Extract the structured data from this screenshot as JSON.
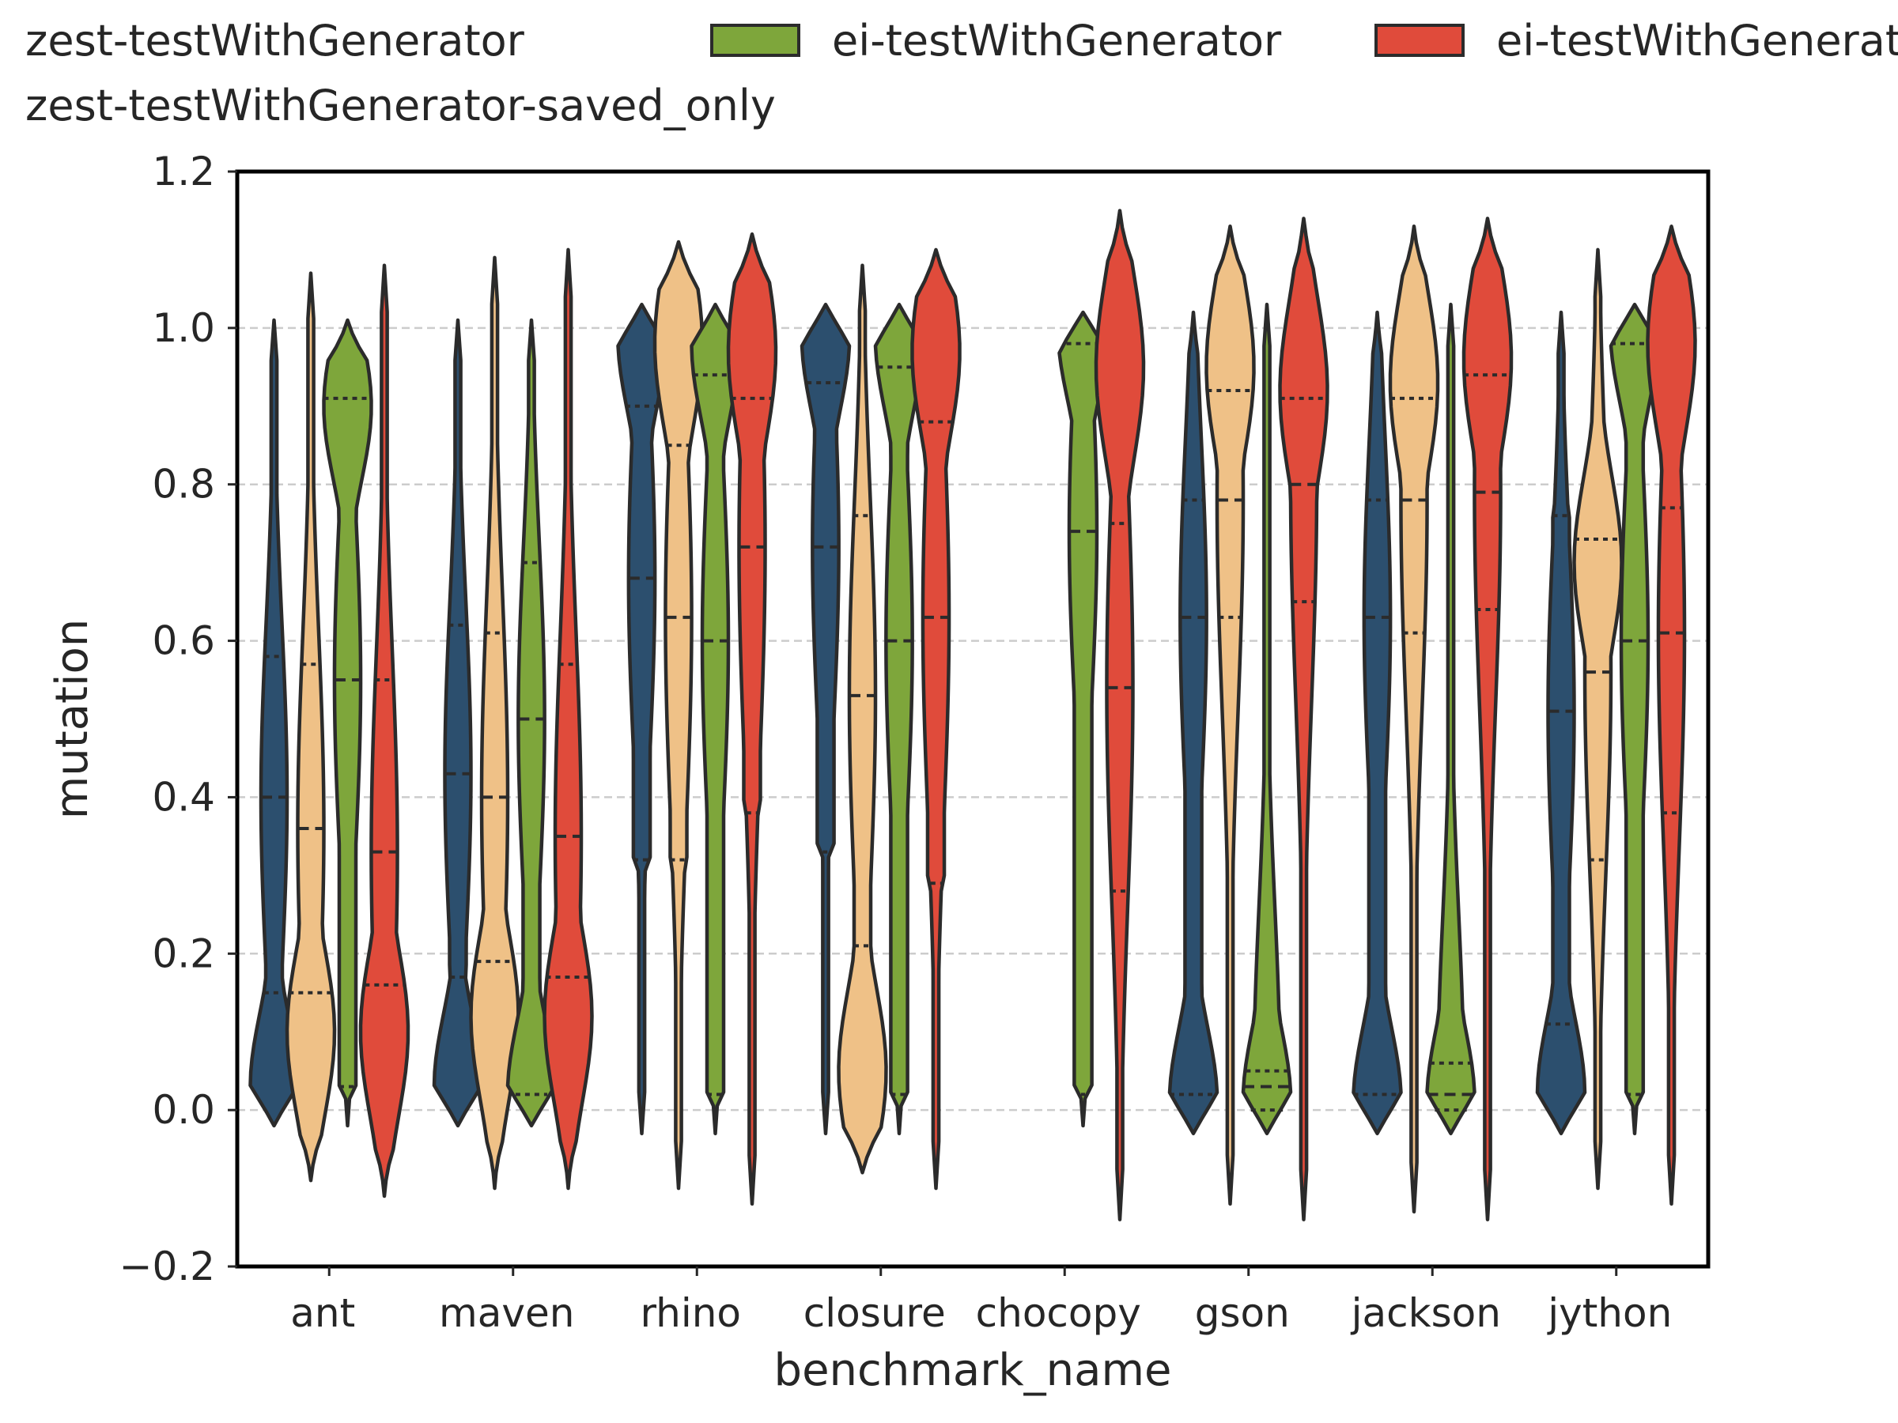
{
  "chart_data": {
    "type": "violin",
    "xlabel": "benchmark_name",
    "ylabel": "mutation",
    "ylim": [
      -0.2,
      1.2
    ],
    "yticks": [
      -0.2,
      0.0,
      0.2,
      0.4,
      0.6,
      0.8,
      1.0,
      1.2
    ],
    "ytick_labels": [
      "−0.2",
      "0.0",
      "0.2",
      "0.4",
      "0.6",
      "0.8",
      "1.0",
      "1.2"
    ],
    "grid": "horizontal dashed",
    "legend_placement": "top, above plot",
    "categories": [
      "ant",
      "maven",
      "rhino",
      "closure",
      "chocopy",
      "gson",
      "jackson",
      "jython"
    ],
    "series": [
      {
        "name": "zest-testWithGenerator",
        "legend_label": "zest-testWithGenerator",
        "color": "#2c4f6e",
        "violins": [
          {
            "category": "ant",
            "min": -0.02,
            "max": 1.01,
            "q1": 0.15,
            "median": 0.4,
            "q3": 0.58,
            "mode": 0.03
          },
          {
            "category": "maven",
            "min": -0.02,
            "max": 1.01,
            "q1": 0.17,
            "median": 0.43,
            "q3": 0.62,
            "mode": 0.03
          },
          {
            "category": "rhino",
            "min": -0.03,
            "max": 1.03,
            "q1": 0.32,
            "median": 0.68,
            "q3": 0.9,
            "mode": 0.99
          },
          {
            "category": "closure",
            "min": -0.03,
            "max": 1.03,
            "q1": 0.33,
            "median": 0.72,
            "q3": 0.93,
            "mode": 0.99
          },
          {
            "category": "chocopy",
            "min": null,
            "max": null,
            "q1": null,
            "median": null,
            "q3": null,
            "mode": null
          },
          {
            "category": "gson",
            "min": -0.03,
            "max": 1.02,
            "q1": 0.02,
            "median": 0.63,
            "q3": 0.78,
            "mode": 0.01
          },
          {
            "category": "jackson",
            "min": -0.03,
            "max": 1.02,
            "q1": 0.02,
            "median": 0.63,
            "q3": 0.78,
            "mode": 0.01
          },
          {
            "category": "jython",
            "min": -0.03,
            "max": 1.02,
            "q1": 0.11,
            "median": 0.51,
            "q3": 0.76,
            "mode": 0.02
          }
        ]
      },
      {
        "name": "zest-testWithGenerator-saved_only",
        "legend_label": "zest-testWithGenerator-saved_only",
        "color": "#efc187",
        "violins": [
          {
            "category": "ant",
            "min": -0.09,
            "max": 1.07,
            "q1": 0.15,
            "median": 0.36,
            "q3": 0.57,
            "mode": 0.1
          },
          {
            "category": "maven",
            "min": -0.1,
            "max": 1.09,
            "q1": 0.19,
            "median": 0.4,
            "q3": 0.61,
            "mode": 0.12
          },
          {
            "category": "rhino",
            "min": -0.1,
            "max": 1.11,
            "q1": 0.32,
            "median": 0.63,
            "q3": 0.85,
            "mode": 0.98
          },
          {
            "category": "closure",
            "min": -0.08,
            "max": 1.08,
            "q1": 0.21,
            "median": 0.53,
            "q3": 0.76,
            "mode": 0.05
          },
          {
            "category": "chocopy",
            "min": null,
            "max": null,
            "q1": null,
            "median": null,
            "q3": null,
            "mode": null
          },
          {
            "category": "gson",
            "min": -0.12,
            "max": 1.13,
            "q1": 0.63,
            "median": 0.78,
            "q3": 0.92,
            "mode": 0.95
          },
          {
            "category": "jackson",
            "min": -0.13,
            "max": 1.13,
            "q1": 0.61,
            "median": 0.78,
            "q3": 0.91,
            "mode": 0.93
          },
          {
            "category": "jython",
            "min": -0.1,
            "max": 1.1,
            "q1": 0.32,
            "median": 0.56,
            "q3": 0.73,
            "mode": 0.7
          }
        ]
      },
      {
        "name": "ei-testWithGenerator",
        "legend_label": "ei-testWithGenerator",
        "color": "#7ea63b",
        "violins": [
          {
            "category": "ant",
            "min": -0.02,
            "max": 1.01,
            "q1": 0.03,
            "median": 0.55,
            "q3": 0.91,
            "mode": 0.9
          },
          {
            "category": "maven",
            "min": -0.02,
            "max": 1.01,
            "q1": 0.02,
            "median": 0.5,
            "q3": 0.7,
            "mode": 0.02
          },
          {
            "category": "rhino",
            "min": -0.03,
            "max": 1.03,
            "q1": 0.02,
            "median": 0.6,
            "q3": 0.94,
            "mode": 0.98
          },
          {
            "category": "closure",
            "min": -0.03,
            "max": 1.03,
            "q1": 0.02,
            "median": 0.6,
            "q3": 0.95,
            "mode": 0.99
          },
          {
            "category": "chocopy",
            "min": -0.02,
            "max": 1.02,
            "q1": 0.02,
            "median": 0.74,
            "q3": 0.98,
            "mode": 1.0
          },
          {
            "category": "gson",
            "min": -0.03,
            "max": 1.03,
            "q1": 0.0,
            "median": 0.03,
            "q3": 0.05,
            "mode": 0.01
          },
          {
            "category": "jackson",
            "min": -0.03,
            "max": 1.03,
            "q1": 0.0,
            "median": 0.02,
            "q3": 0.06,
            "mode": 0.01
          },
          {
            "category": "jython",
            "min": -0.03,
            "max": 1.03,
            "q1": 0.02,
            "median": 0.6,
            "q3": 0.98,
            "mode": 1.0
          }
        ]
      },
      {
        "name": "ei-testWithGenerator-saved_only",
        "legend_label": "ei-testWithGenerat",
        "color": "#e04b3b",
        "violins": [
          {
            "category": "ant",
            "min": -0.11,
            "max": 1.08,
            "q1": 0.16,
            "median": 0.33,
            "q3": 0.55,
            "mode": 0.1
          },
          {
            "category": "maven",
            "min": -0.1,
            "max": 1.1,
            "q1": 0.17,
            "median": 0.35,
            "q3": 0.57,
            "mode": 0.12
          },
          {
            "category": "rhino",
            "min": -0.12,
            "max": 1.12,
            "q1": 0.38,
            "median": 0.72,
            "q3": 0.91,
            "mode": 0.97
          },
          {
            "category": "closure",
            "min": -0.1,
            "max": 1.1,
            "q1": 0.29,
            "median": 0.63,
            "q3": 0.88,
            "mode": 0.97
          },
          {
            "category": "chocopy",
            "min": -0.14,
            "max": 1.15,
            "q1": 0.28,
            "median": 0.54,
            "q3": 0.75,
            "mode": 0.95
          },
          {
            "category": "gson",
            "min": -0.14,
            "max": 1.14,
            "q1": 0.65,
            "median": 0.8,
            "q3": 0.91,
            "mode": 0.92
          },
          {
            "category": "jackson",
            "min": -0.14,
            "max": 1.14,
            "q1": 0.64,
            "median": 0.79,
            "q3": 0.94,
            "mode": 0.96
          },
          {
            "category": "jython",
            "min": -0.12,
            "max": 1.13,
            "q1": 0.38,
            "median": 0.61,
            "q3": 0.77,
            "mode": 0.98
          }
        ]
      }
    ]
  }
}
